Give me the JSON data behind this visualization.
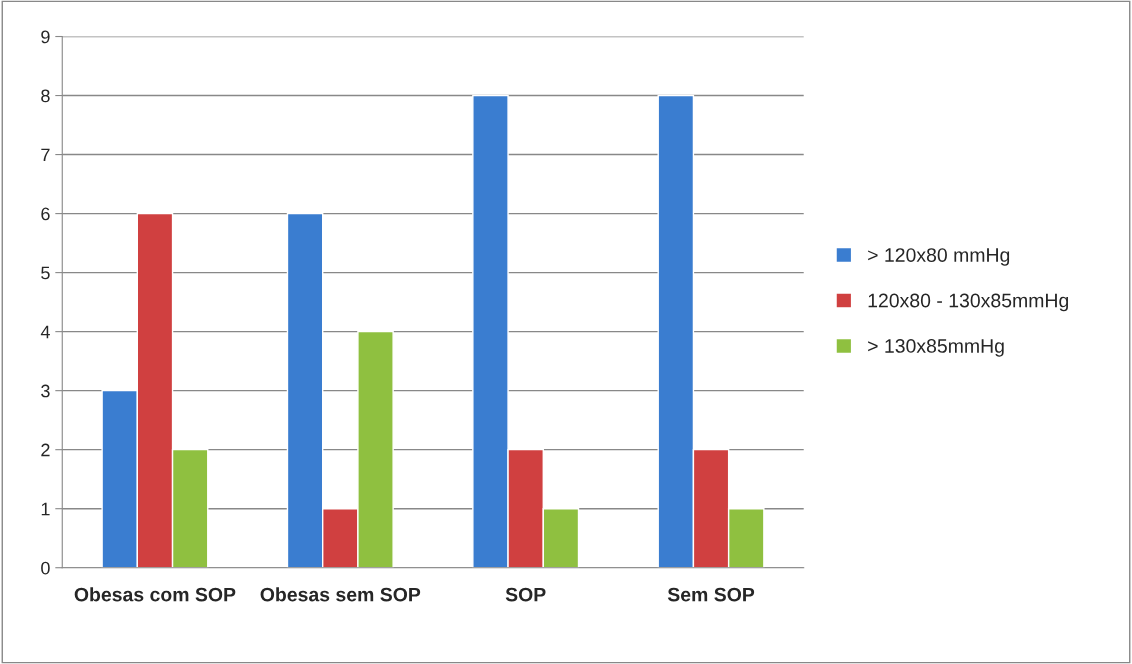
{
  "chart_data": {
    "type": "bar",
    "categories": [
      "Obesas com SOP",
      "Obesas sem SOP",
      "SOP",
      "Sem SOP"
    ],
    "series": [
      {
        "name": "> 120x80 mmHg",
        "color": "#3a7dd0",
        "values": [
          3,
          6,
          8,
          8
        ]
      },
      {
        "name": "120x80 - 130x85mmHg",
        "color": "#d04040",
        "values": [
          6,
          1,
          2,
          2
        ]
      },
      {
        "name": "> 130x85mmHg",
        "color": "#8fc040",
        "values": [
          2,
          4,
          1,
          1
        ]
      }
    ],
    "ylim": [
      0,
      9
    ],
    "yticks": [
      0,
      1,
      2,
      3,
      4,
      5,
      6,
      7,
      8,
      9
    ],
    "grid": "y",
    "legend": "right"
  }
}
